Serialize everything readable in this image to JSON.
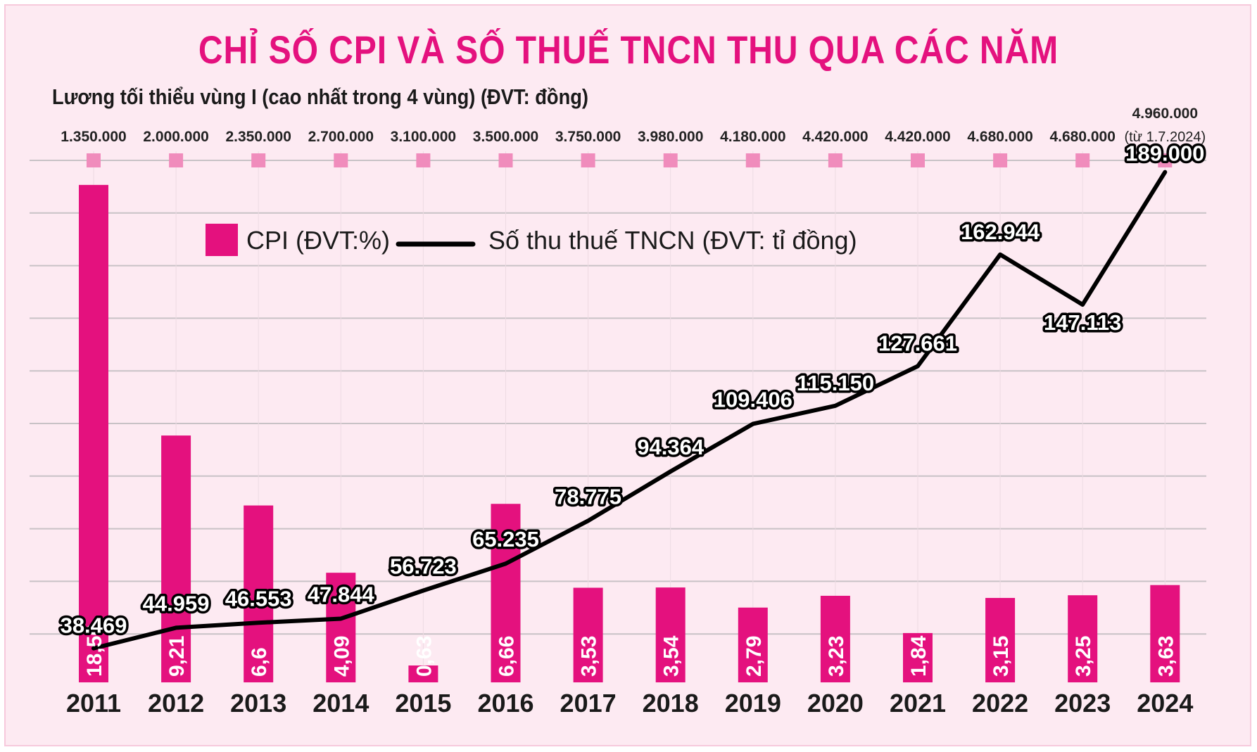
{
  "title": "CHỈ SỐ CPI VÀ SỐ THUẾ TNCN THU QUA CÁC NĂM",
  "subtitle": "Lương tối thiểu vùng I (cao nhất trong 4 vùng) (ĐVT: đồng)",
  "colors": {
    "background": "#fdeaf2",
    "title": "#e4117e",
    "bar": "#e4117e",
    "marker": "#f08cbc",
    "line": "#000000",
    "grid": "#c8c2c6"
  },
  "legend": {
    "cpi": "CPI (ĐVT:%)",
    "pit": "Số thu thuế TNCN (ĐVT: tỉ đồng)"
  },
  "chart_data": {
    "type": "bar",
    "categories": [
      "2011",
      "2012",
      "2013",
      "2014",
      "2015",
      "2016",
      "2017",
      "2018",
      "2019",
      "2020",
      "2021",
      "2022",
      "2023",
      "2024"
    ],
    "series": [
      {
        "name": "CPI (ĐVT:%)",
        "type": "bar",
        "values": [
          18.56,
          9.21,
          6.6,
          4.09,
          0.63,
          6.66,
          3.53,
          3.54,
          2.79,
          3.23,
          1.84,
          3.15,
          3.25,
          3.63
        ],
        "labels": [
          "18,56",
          "9,21",
          "6,6",
          "4,09",
          "0,63",
          "6,66",
          "3,53",
          "3,54",
          "2,79",
          "3,23",
          "1,84",
          "3,15",
          "3,25",
          "3,63"
        ]
      },
      {
        "name": "Số thu thuế TNCN (ĐVT: tỉ đồng)",
        "type": "line",
        "values": [
          38469,
          44959,
          46553,
          47844,
          56723,
          65235,
          78775,
          94364,
          109406,
          115150,
          127661,
          162944,
          147113,
          189000
        ],
        "labels": [
          "38.469",
          "44.959",
          "46.553",
          "47.844",
          "56.723",
          "65.235",
          "78.775",
          "94.364",
          "109.406",
          "115.150",
          "127.661",
          "162.944",
          "147.113",
          "189.000"
        ]
      }
    ],
    "wage_labels": [
      "1.350.000",
      "2.000.000",
      "2.350.000",
      "2.700.000",
      "3.100.000",
      "3.500.000",
      "3.750.000",
      "3.980.000",
      "4.180.000",
      "4.420.000",
      "4.420.000",
      "4.680.000",
      "4.680.000",
      "4.960.000"
    ],
    "wage_note_2024": "(từ 1.7.2024)",
    "grid": true,
    "legend_position": "top-left"
  }
}
